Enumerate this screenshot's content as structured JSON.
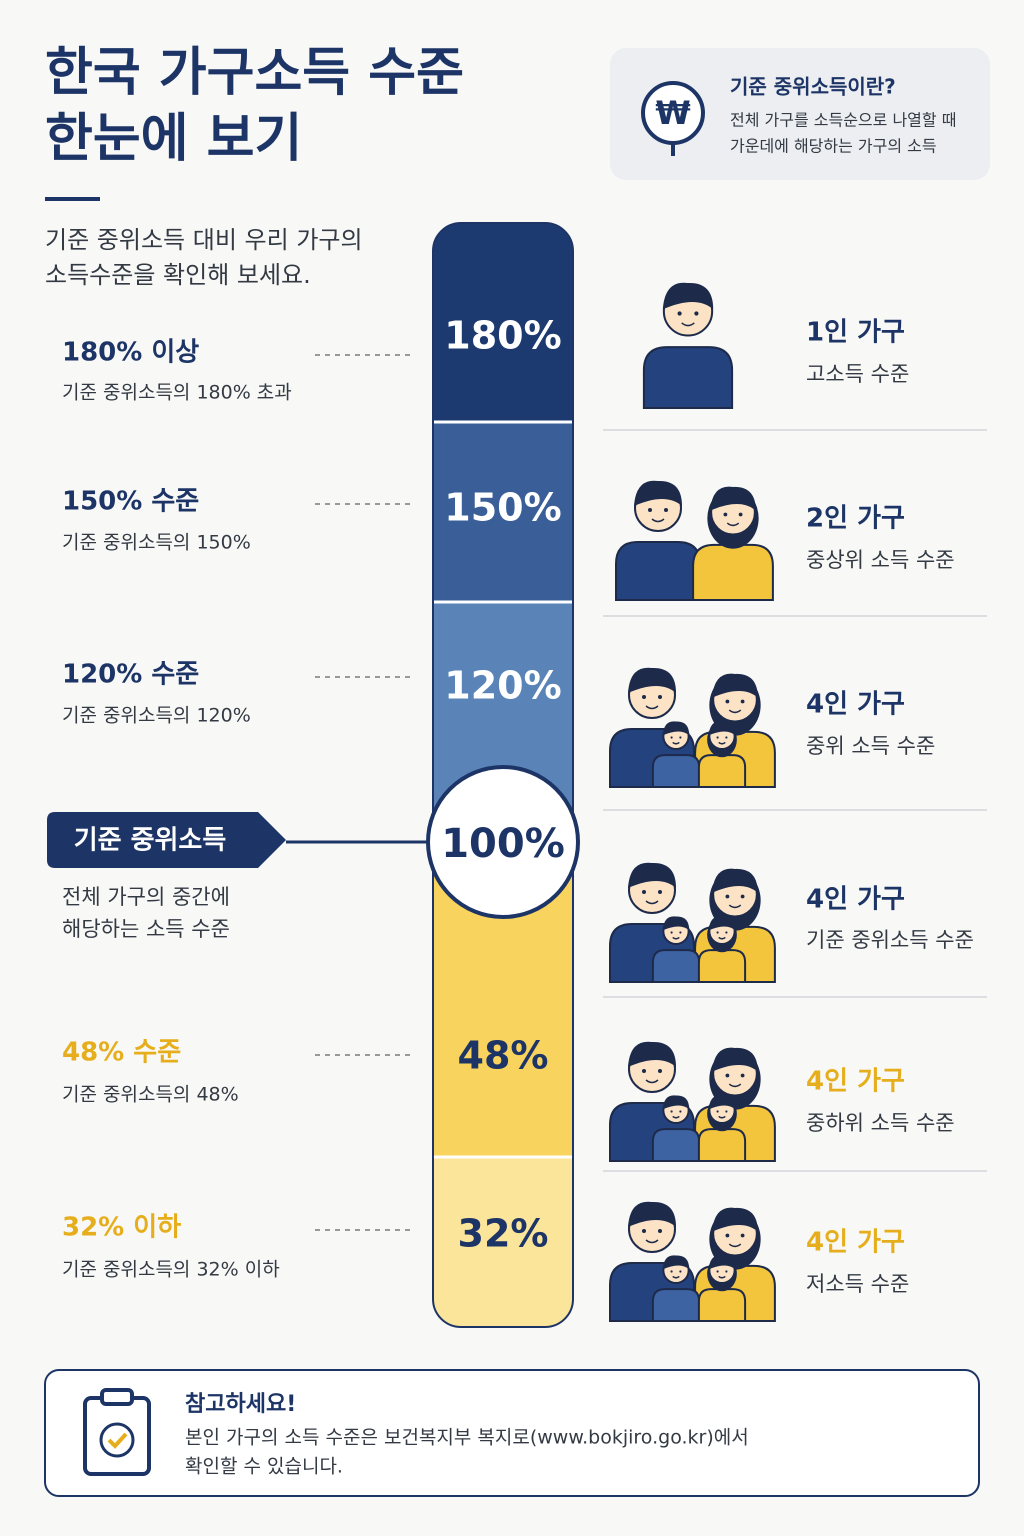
{
  "header": {
    "title_lines": [
      "한국 가구소득 수준",
      "한눈에 보기"
    ],
    "subtitle_lines": [
      "기준 중위소득 대비 우리 가구의",
      "소득수준을 확인해 보세요."
    ]
  },
  "info_box": {
    "icon": "₩",
    "title": "기준 중위소득이란?",
    "lines": [
      "전체 가구를 소득순으로 나열할 때",
      "가운데에 해당하는 가구의 소득"
    ]
  },
  "levels": [
    {
      "label": "180% 이상",
      "description": "기준 중위소득의 180% 초과",
      "percent": "180%"
    },
    {
      "label": "150% 수준",
      "description": "기준 중위소득의 150%",
      "percent": "150%"
    },
    {
      "label": "120% 수준",
      "description": "기준 중위소득의 120%",
      "percent": "120%"
    },
    {
      "label": "48% 수준",
      "description": "기준 중위소득의 48%",
      "percent": "48%"
    },
    {
      "label": "32% 이하",
      "description": "기준 중위소득의 32% 이하",
      "percent": "32%"
    }
  ],
  "median": {
    "label": "기준 중위소득",
    "percent": "100%",
    "description_lines": [
      "전체 가구의 중간에",
      "해당하는 소득 수준"
    ]
  },
  "households": [
    {
      "size": "1인 가구",
      "level": "고소득 수준"
    },
    {
      "size": "2인 가구",
      "level": "중상위 소득 수준"
    },
    {
      "size": "4인 가구",
      "level": "중위 소득 수준"
    },
    {
      "size": "4인 가구",
      "level": "기준 중위소득 수준"
    },
    {
      "size": "4인 가구",
      "level": "중하위 소득 수준"
    },
    {
      "size": "4인 가구",
      "level": "저소득 수준"
    }
  ],
  "note": {
    "title": "참고하세요!",
    "lines": [
      "본인 가구의 소득 수준은 보건복지부 복지로(www.bokjiro.go.kr)에서",
      "확인할 수 있습니다."
    ]
  }
}
